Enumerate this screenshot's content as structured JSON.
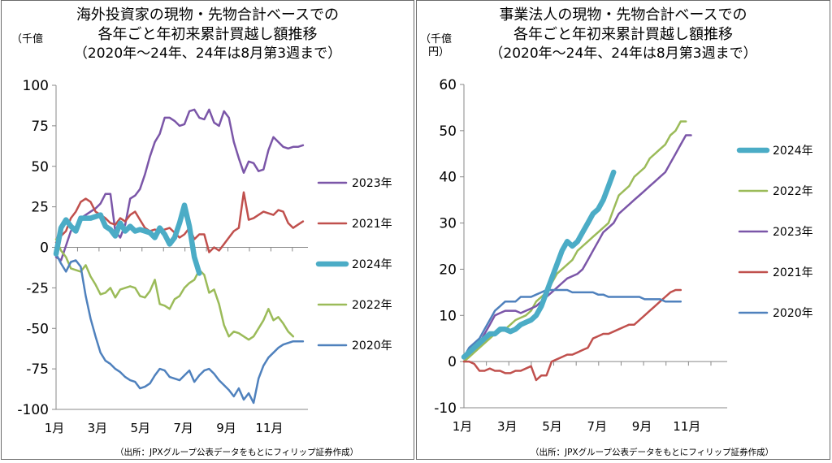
{
  "charts": [
    {
      "id": "left",
      "title_lines": [
        "海外投資家の現物・先物合計ベースでの",
        "各年ごと年初来累計買越し額推移",
        "（2020年～24年、24年は8月第3週まで）"
      ],
      "unit": "（千億",
      "source": "（出所：JPXグループ公表データをもとにフィリップ証券作成）"
    },
    {
      "id": "right",
      "title_lines": [
        "事業法人の現物・先物合計ベースでの",
        "各年ごと年初来累計買越し額推移",
        "（2020年～24年、24年は8月第3週まで）"
      ],
      "unit_lines": [
        "（千億",
        "円）"
      ],
      "source": "（出所：JPXグループ公表データをもとにフィリップ証券作成）"
    }
  ],
  "chart_data": [
    {
      "type": "line",
      "ylim": [
        -100,
        100
      ],
      "yticks": [
        100,
        75,
        50,
        25,
        0,
        -25,
        -50,
        -75,
        -100
      ],
      "ytick_labels": [
        "100",
        "75",
        "50",
        "25",
        "0",
        "-25",
        "-50",
        "-75",
        "-100"
      ],
      "xlim": [
        1,
        52
      ],
      "xticks": [
        1,
        9.7,
        18.4,
        27.1,
        35.8,
        44.5
      ],
      "xtick_labels": [
        "1月",
        "3月",
        "5月",
        "7月",
        "9月",
        "11月"
      ],
      "legend_order": [
        "2023年",
        "2021年",
        "2024年",
        "2022年",
        "2020年"
      ],
      "series": [
        {
          "name": "2023年",
          "color": "#7b56a8",
          "width": 2.5,
          "values": [
            -6,
            -8,
            1,
            10,
            13,
            18,
            20,
            22,
            24,
            27,
            33,
            33,
            10,
            6,
            14,
            30,
            32,
            36,
            45,
            56,
            65,
            70,
            80,
            80,
            78,
            75,
            76,
            84,
            85,
            80,
            79,
            85,
            77,
            75,
            84,
            80,
            65,
            55,
            46,
            53,
            52,
            47,
            48,
            60,
            68,
            65,
            62,
            61,
            62,
            62,
            63
          ]
        },
        {
          "name": "2021年",
          "color": "#c0504d",
          "width": 2.5,
          "values": [
            3,
            7,
            10,
            18,
            22,
            28,
            30,
            28,
            22,
            20,
            18,
            15,
            14,
            18,
            16,
            20,
            22,
            17,
            12,
            10,
            11,
            10,
            11,
            12,
            9,
            6,
            8,
            12,
            5,
            8,
            8,
            -3,
            0,
            -2,
            2,
            6,
            10,
            12,
            34,
            17,
            18,
            20,
            22,
            21,
            20,
            23,
            22,
            15,
            12,
            14,
            16
          ]
        },
        {
          "name": "2024年",
          "color": "#4bacc6",
          "width": 6.5,
          "values": [
            -4,
            12,
            17,
            13,
            10,
            18,
            18,
            18,
            19,
            20,
            13,
            11,
            7,
            15,
            10,
            13,
            10,
            11,
            10,
            9,
            6,
            12,
            8,
            2,
            6,
            15,
            26,
            13,
            -6,
            -16
          ]
        },
        {
          "name": "2022年",
          "color": "#9bbb59",
          "width": 2.5,
          "values": [
            5,
            -2,
            -6,
            -13,
            -14,
            -15,
            -11,
            -18,
            -23,
            -29,
            -28,
            -25,
            -31,
            -26,
            -25,
            -24,
            -25,
            -30,
            -31,
            -27,
            -20,
            -35,
            -36,
            -38,
            -32,
            -30,
            -25,
            -22,
            -20,
            -14,
            -17,
            -28,
            -26,
            -35,
            -48,
            -55,
            -52,
            -53,
            -55,
            -57,
            -55,
            -50,
            -45,
            -38,
            -45,
            -43,
            -47,
            -52,
            -55
          ]
        },
        {
          "name": "2020年",
          "color": "#4f81bd",
          "width": 2.5,
          "values": [
            -4,
            -10,
            -15,
            -9,
            -8,
            -12,
            -30,
            -44,
            -55,
            -65,
            -70,
            -72,
            -75,
            -77,
            -80,
            -82,
            -83,
            -87,
            -86,
            -84,
            -79,
            -75,
            -76,
            -80,
            -81,
            -82,
            -79,
            -76,
            -83,
            -79,
            -76,
            -75,
            -78,
            -82,
            -85,
            -88,
            -92,
            -87,
            -94,
            -90,
            -96,
            -81,
            -73,
            -68,
            -65,
            -62,
            -60,
            -59,
            -58,
            -58,
            -58
          ]
        }
      ]
    },
    {
      "type": "line",
      "ylim": [
        -10,
        60
      ],
      "yticks": [
        60,
        50,
        40,
        30,
        20,
        10,
        0,
        -10
      ],
      "ytick_labels": [
        "60",
        "50",
        "40",
        "30",
        "20",
        "10",
        "0",
        "-10"
      ],
      "xlim": [
        1,
        52
      ],
      "xticks": [
        1,
        9.7,
        18.4,
        27.1,
        35.8,
        44.5
      ],
      "xtick_labels": [
        "1月",
        "3月",
        "5月",
        "7月",
        "9月",
        "11月"
      ],
      "legend_order": [
        "2024年",
        "2022年",
        "2023年",
        "2021年",
        "2020年"
      ],
      "series": [
        {
          "name": "2024年",
          "color": "#4bacc6",
          "width": 6.5,
          "values": [
            1,
            2,
            3,
            4,
            5,
            6,
            6,
            7,
            7,
            6.5,
            7,
            8,
            8.5,
            9,
            10,
            12,
            15,
            18,
            21,
            24,
            26,
            25,
            26,
            28,
            30,
            32,
            33,
            35,
            38,
            41
          ]
        },
        {
          "name": "2022年",
          "color": "#9bbb59",
          "width": 2.5,
          "values": [
            0,
            1,
            2,
            3,
            4,
            5,
            6,
            6.5,
            7,
            8,
            9,
            9.5,
            10,
            11,
            13,
            14,
            15,
            17,
            19,
            20,
            21,
            22,
            24,
            25,
            26,
            27,
            28,
            29,
            30,
            33,
            36,
            37,
            38,
            40,
            41,
            42,
            44,
            45,
            46,
            47,
            49,
            50,
            52,
            52
          ]
        },
        {
          "name": "2023年",
          "color": "#7b56a8",
          "width": 2.5,
          "values": [
            1,
            2,
            3,
            4,
            6,
            8,
            10,
            10.5,
            11,
            11,
            11,
            10.5,
            11,
            11.5,
            12,
            13,
            14,
            15,
            16,
            17,
            18,
            18.5,
            19,
            20,
            22,
            24,
            26,
            28,
            29,
            30,
            32,
            33,
            34,
            35,
            36,
            37,
            38,
            39,
            40,
            41,
            43,
            45,
            47,
            49,
            49
          ]
        },
        {
          "name": "2021年",
          "color": "#c0504d",
          "width": 2.5,
          "values": [
            0,
            0,
            -0.5,
            -2,
            -2,
            -1.5,
            -2,
            -2,
            -2.5,
            -2.5,
            -2,
            -2,
            -1.5,
            -1,
            -4,
            -3,
            -3,
            0,
            0.5,
            1,
            1.5,
            1.5,
            2,
            2.5,
            3,
            5,
            5.5,
            6,
            6,
            6.5,
            7,
            7.5,
            8,
            8,
            9,
            10,
            11,
            12,
            13,
            14,
            15,
            15.5,
            15.5
          ]
        },
        {
          "name": "2020年",
          "color": "#4f81bd",
          "width": 2.5,
          "values": [
            1,
            3,
            4,
            5,
            7,
            9,
            11,
            12,
            13,
            13,
            13,
            14,
            14,
            14,
            14.5,
            15,
            15.5,
            15.5,
            15.5,
            15.5,
            15.5,
            15,
            15,
            15,
            15,
            15,
            14.5,
            14.5,
            14,
            14,
            14,
            14,
            14,
            14,
            14,
            13.5,
            13.5,
            13.5,
            13.5,
            13,
            13,
            13,
            13
          ]
        }
      ]
    }
  ]
}
